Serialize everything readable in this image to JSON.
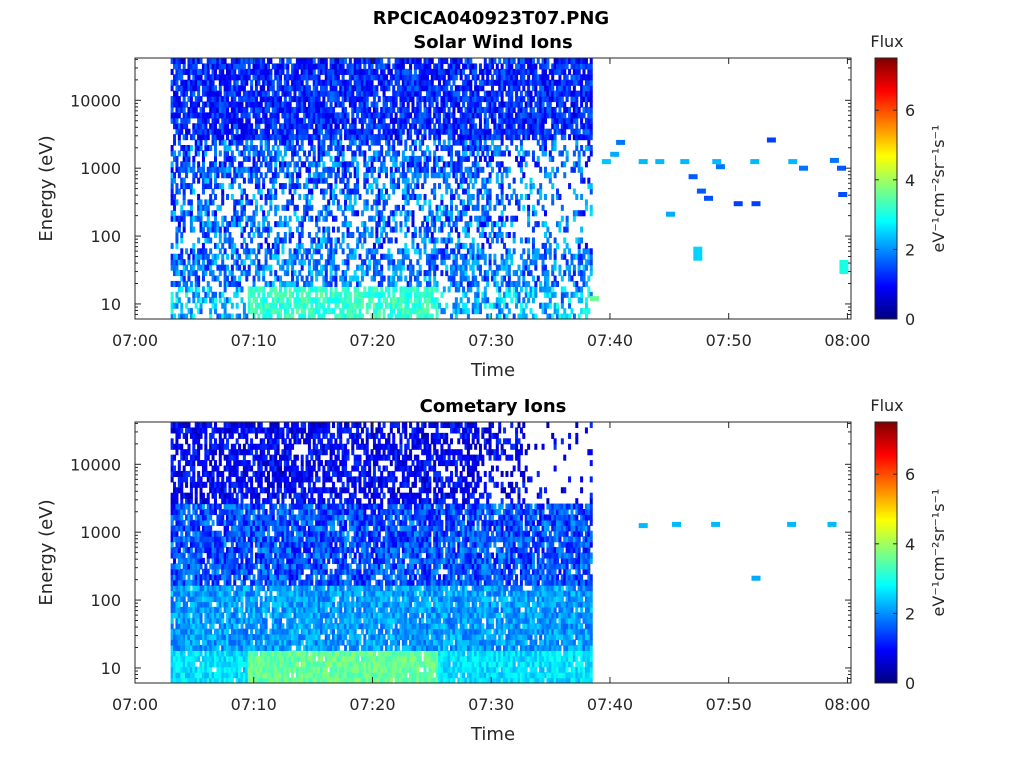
{
  "figure": {
    "title": "RPCICA040923T07.PNG"
  },
  "colormap": {
    "name": "jet",
    "colors": [
      "#00007f",
      "#0000ff",
      "#007fff",
      "#00ffff",
      "#7fff7f",
      "#ffff00",
      "#ff7f00",
      "#ff0000",
      "#7f0000"
    ]
  },
  "chart_data": [
    {
      "type": "heatmap",
      "title": "Solar Wind Ions",
      "xlabel": "Time",
      "ylabel": "Energy (eV)",
      "x_ticks": [
        "07:00",
        "07:10",
        "07:20",
        "07:30",
        "07:40",
        "07:50",
        "08:00"
      ],
      "x_tick_minutes": [
        0,
        10,
        20,
        30,
        40,
        50,
        60
      ],
      "y_ticks": [
        "10",
        "100",
        "1000",
        "10000"
      ],
      "y_tick_values": [
        10,
        100,
        1000,
        10000
      ],
      "xlim_minutes": [
        0,
        60.3
      ],
      "ylim": [
        6,
        42000
      ],
      "yscale": "log",
      "colorbar": {
        "label_title": "Flux",
        "label": "eV⁻¹cm⁻²sr⁻¹s⁻¹",
        "ticks": [
          "0",
          "2",
          "4",
          "6"
        ],
        "tick_values": [
          0,
          2,
          4,
          6
        ],
        "range": [
          0,
          7.5
        ]
      },
      "dense_region_minutes": [
        3,
        38.5
      ],
      "sparse_points": [
        {
          "t": 38.7,
          "e": 12,
          "v": 3.6
        },
        {
          "t": 39.7,
          "e": 1250,
          "v": 2.4
        },
        {
          "t": 40.4,
          "e": 1600,
          "v": 2.2
        },
        {
          "t": 40.9,
          "e": 2400,
          "v": 1.8
        },
        {
          "t": 42.8,
          "e": 1250,
          "v": 2.3
        },
        {
          "t": 44.2,
          "e": 1250,
          "v": 2.3
        },
        {
          "t": 45.1,
          "e": 210,
          "v": 2.2
        },
        {
          "t": 46.3,
          "e": 1250,
          "v": 2.3
        },
        {
          "t": 47.0,
          "e": 750,
          "v": 1.6
        },
        {
          "t": 47.4,
          "e": 55,
          "v": 2.5
        },
        {
          "t": 47.7,
          "e": 460,
          "v": 1.6
        },
        {
          "t": 48.3,
          "e": 360,
          "v": 1.5
        },
        {
          "t": 49.0,
          "e": 1250,
          "v": 2.3
        },
        {
          "t": 49.3,
          "e": 1050,
          "v": 1.8
        },
        {
          "t": 50.8,
          "e": 300,
          "v": 1.4
        },
        {
          "t": 52.2,
          "e": 1250,
          "v": 2.3
        },
        {
          "t": 52.3,
          "e": 300,
          "v": 1.4
        },
        {
          "t": 53.6,
          "e": 2600,
          "v": 1.4
        },
        {
          "t": 55.4,
          "e": 1250,
          "v": 2.3
        },
        {
          "t": 56.3,
          "e": 1000,
          "v": 1.8
        },
        {
          "t": 58.9,
          "e": 1300,
          "v": 1.8
        },
        {
          "t": 59.5,
          "e": 1000,
          "v": 1.6
        },
        {
          "t": 59.6,
          "e": 410,
          "v": 1.5
        },
        {
          "t": 59.7,
          "e": 35,
          "v": 3.0
        }
      ]
    },
    {
      "type": "heatmap",
      "title": "Cometary Ions",
      "xlabel": "Time",
      "ylabel": "Energy (eV)",
      "x_ticks": [
        "07:00",
        "07:10",
        "07:20",
        "07:30",
        "07:40",
        "07:50",
        "08:00"
      ],
      "x_tick_minutes": [
        0,
        10,
        20,
        30,
        40,
        50,
        60
      ],
      "y_ticks": [
        "10",
        "100",
        "1000",
        "10000"
      ],
      "y_tick_values": [
        10,
        100,
        1000,
        10000
      ],
      "xlim_minutes": [
        0,
        60.3
      ],
      "ylim": [
        6,
        42000
      ],
      "yscale": "log",
      "colorbar": {
        "label_title": "Flux",
        "label": "eV⁻¹cm⁻²sr⁻¹s⁻¹",
        "ticks": [
          "0",
          "2",
          "4",
          "6"
        ],
        "tick_values": [
          0,
          2,
          4,
          6
        ],
        "range": [
          0,
          7.5
        ]
      },
      "dense_region_minutes": [
        3,
        38.5
      ],
      "sparse_points": [
        {
          "t": 42.8,
          "e": 1250,
          "v": 2.3
        },
        {
          "t": 45.6,
          "e": 1300,
          "v": 2.3
        },
        {
          "t": 48.9,
          "e": 1300,
          "v": 2.3
        },
        {
          "t": 52.3,
          "e": 210,
          "v": 2.2
        },
        {
          "t": 55.3,
          "e": 1300,
          "v": 2.3
        },
        {
          "t": 58.7,
          "e": 1300,
          "v": 2.3
        }
      ]
    }
  ]
}
